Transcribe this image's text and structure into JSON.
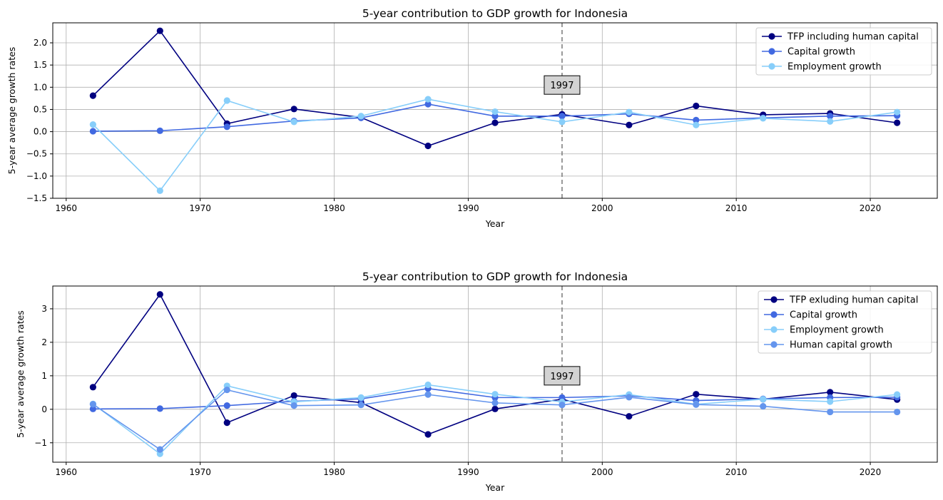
{
  "chart_data": [
    {
      "type": "line",
      "title": "5-year contribution to GDP growth for Indonesia",
      "xlabel": "Year",
      "ylabel": "5-year average growth rates",
      "xlim": [
        1959,
        2025
      ],
      "ylim": [
        -1.5,
        2.45
      ],
      "xticks": [
        1960,
        1970,
        1980,
        1990,
        2000,
        2010,
        2020
      ],
      "yticks": [
        -1.5,
        -1.0,
        -0.5,
        0.0,
        0.5,
        1.0,
        1.5,
        2.0
      ],
      "ytick_labels": [
        "−1.5",
        "−1.0",
        "−0.5",
        "0.0",
        "0.5",
        "1.0",
        "1.5",
        "2.0"
      ],
      "grid": true,
      "legend_position": "top-right",
      "x": [
        1962,
        1967,
        1972,
        1977,
        1982,
        1987,
        1992,
        1997,
        2002,
        2007,
        2012,
        2017,
        2022
      ],
      "series": [
        {
          "name": "TFP including human capital",
          "color": "#000080",
          "values": [
            0.81,
            2.27,
            0.18,
            0.51,
            0.32,
            -0.32,
            0.2,
            0.39,
            0.15,
            0.58,
            0.38,
            0.41,
            0.2
          ]
        },
        {
          "name": "Capital growth",
          "color": "#4169e1",
          "values": [
            0.01,
            0.02,
            0.11,
            0.24,
            0.31,
            0.62,
            0.35,
            0.35,
            0.4,
            0.26,
            0.31,
            0.35,
            0.36
          ]
        },
        {
          "name": "Employment growth",
          "color": "#87cefa",
          "values": [
            0.16,
            -1.33,
            0.7,
            0.22,
            0.35,
            0.73,
            0.45,
            0.22,
            0.44,
            0.15,
            0.3,
            0.23,
            0.44
          ]
        }
      ],
      "annotation": {
        "text": "1997",
        "x": 1997,
        "y": 1.05,
        "vline_x": 1997
      }
    },
    {
      "type": "line",
      "title": "5-year contribution to GDP growth for Indonesia",
      "xlabel": "Year",
      "ylabel": "5-year average growth rates",
      "xlim": [
        1959,
        2025
      ],
      "ylim": [
        -1.58,
        3.68
      ],
      "xticks": [
        1960,
        1970,
        1980,
        1990,
        2000,
        2010,
        2020
      ],
      "yticks": [
        -1,
        0,
        1,
        2,
        3
      ],
      "ytick_labels": [
        "−1",
        "0",
        "1",
        "2",
        "3"
      ],
      "grid": true,
      "legend_position": "top-right",
      "x": [
        1962,
        1967,
        1972,
        1977,
        1982,
        1987,
        1992,
        1997,
        2002,
        2007,
        2012,
        2017,
        2022
      ],
      "series": [
        {
          "name": "TFP exluding human capital",
          "color": "#000080",
          "values": [
            0.66,
            3.43,
            -0.4,
            0.41,
            0.2,
            -0.75,
            0.01,
            0.3,
            -0.21,
            0.45,
            0.3,
            0.51,
            0.29
          ]
        },
        {
          "name": "Capital growth",
          "color": "#4169e1",
          "values": [
            0.01,
            0.02,
            0.11,
            0.24,
            0.31,
            0.62,
            0.35,
            0.35,
            0.4,
            0.26,
            0.31,
            0.35,
            0.36
          ]
        },
        {
          "name": "Employment growth",
          "color": "#87cefa",
          "values": [
            0.16,
            -1.33,
            0.7,
            0.22,
            0.35,
            0.73,
            0.45,
            0.22,
            0.44,
            0.15,
            0.3,
            0.23,
            0.44
          ]
        },
        {
          "name": "Human capital growth",
          "color": "#6495ed",
          "values": [
            0.15,
            -1.2,
            0.58,
            0.11,
            0.13,
            0.44,
            0.19,
            0.13,
            0.36,
            0.14,
            0.09,
            -0.08,
            -0.08
          ]
        }
      ],
      "annotation": {
        "text": "1997",
        "x": 1997,
        "y": 1.0,
        "vline_x": 1997
      }
    }
  ]
}
